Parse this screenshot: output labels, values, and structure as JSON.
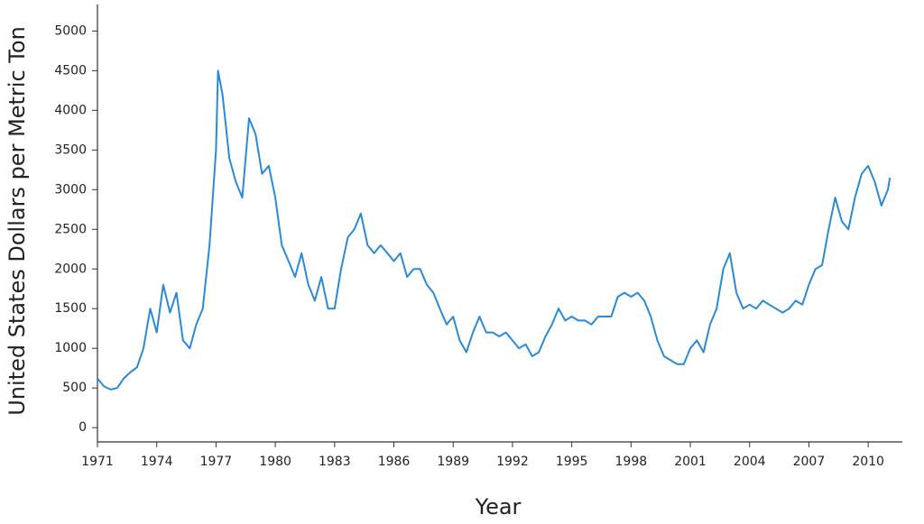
{
  "chart_data": {
    "type": "line",
    "x_label": "Year",
    "y_label": "United States Dollars per Metric Ton",
    "x": [
      1971,
      1971.33,
      1971.67,
      1972,
      1972.33,
      1972.67,
      1973,
      1973.33,
      1973.67,
      1974,
      1974.33,
      1974.67,
      1975,
      1975.33,
      1975.67,
      1976,
      1976.33,
      1976.67,
      1977,
      1977.1,
      1977.33,
      1977.67,
      1978,
      1978.33,
      1978.67,
      1979,
      1979.33,
      1979.67,
      1980,
      1980.33,
      1980.67,
      1981,
      1981.33,
      1981.67,
      1982,
      1982.33,
      1982.67,
      1983,
      1983.33,
      1983.67,
      1984,
      1984.33,
      1984.67,
      1985,
      1985.33,
      1985.67,
      1986,
      1986.33,
      1986.67,
      1987,
      1987.33,
      1987.67,
      1988,
      1988.33,
      1988.67,
      1989,
      1989.33,
      1989.67,
      1990,
      1990.33,
      1990.67,
      1991,
      1991.33,
      1991.67,
      1992,
      1992.33,
      1992.67,
      1993,
      1993.33,
      1993.67,
      1994,
      1994.33,
      1994.67,
      1995,
      1995.33,
      1995.67,
      1996,
      1996.33,
      1996.67,
      1997,
      1997.33,
      1997.67,
      1998,
      1998.33,
      1998.67,
      1999,
      1999.33,
      1999.67,
      2000,
      2000.33,
      2000.67,
      2001,
      2001.33,
      2001.67,
      2002,
      2002.33,
      2002.67,
      2003,
      2003.33,
      2003.67,
      2004,
      2004.33,
      2004.67,
      2005,
      2005.33,
      2005.67,
      2006,
      2006.33,
      2006.67,
      2007,
      2007.33,
      2007.67,
      2008,
      2008.33,
      2008.67,
      2009,
      2009.33,
      2009.67,
      2010,
      2010.33,
      2010.67,
      2011,
      2011.1
    ],
    "values": [
      620,
      520,
      480,
      500,
      620,
      700,
      760,
      1000,
      1500,
      1200,
      1800,
      1450,
      1700,
      1100,
      1000,
      1300,
      1500,
      2300,
      3500,
      4500,
      4200,
      3400,
      3100,
      2900,
      3900,
      3700,
      3200,
      3300,
      2900,
      2300,
      2100,
      1900,
      2200,
      1800,
      1600,
      1900,
      1500,
      1500,
      2000,
      2400,
      2500,
      2700,
      2300,
      2200,
      2300,
      2200,
      2100,
      2200,
      1900,
      2000,
      2000,
      1800,
      1700,
      1500,
      1300,
      1400,
      1100,
      950,
      1200,
      1400,
      1200,
      1200,
      1150,
      1200,
      1100,
      1000,
      1050,
      900,
      950,
      1150,
      1300,
      1500,
      1350,
      1400,
      1350,
      1350,
      1300,
      1400,
      1400,
      1400,
      1650,
      1700,
      1650,
      1700,
      1600,
      1400,
      1100,
      900,
      850,
      800,
      800,
      1000,
      1100,
      950,
      1300,
      1500,
      2000,
      2200,
      1700,
      1500,
      1550,
      1500,
      1600,
      1550,
      1500,
      1450,
      1500,
      1600,
      1550,
      1800,
      2000,
      2050,
      2500,
      2900,
      2600,
      2500,
      2900,
      3200,
      3300,
      3100,
      2800,
      3000,
      3150
    ],
    "color": "#2b8ad6",
    "xlim": [
      1971,
      2011.5
    ],
    "xticks": [
      1971,
      1974,
      1977,
      1980,
      1983,
      1986,
      1989,
      1992,
      1995,
      1998,
      2001,
      2004,
      2007,
      2010
    ],
    "ylim": [
      -180,
      5300
    ],
    "yticks": [
      0,
      500,
      1000,
      1500,
      2000,
      2500,
      3000,
      3500,
      4000,
      4500,
      5000
    ]
  }
}
